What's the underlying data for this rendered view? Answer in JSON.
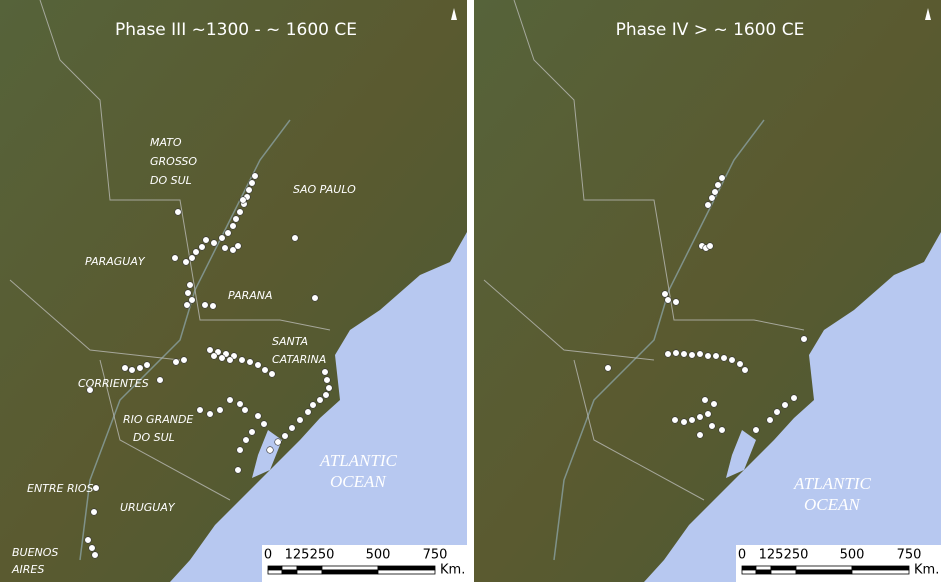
{
  "panels": [
    {
      "title": "Phase III ~1300 - ~ 1600 CE",
      "labels": [
        [
          "MATO",
          "GROSSO",
          "DO SUL"
        ],
        [
          "SAO PAULO"
        ],
        [
          "PARAGUAY"
        ],
        [
          "PARANA"
        ],
        [
          "SANTA",
          "CATARINA"
        ],
        [
          "CORRIENTES"
        ],
        [
          "RIO GRANDE",
          "DO SUL"
        ],
        [
          "ENTRE RIOS"
        ],
        [
          "URUGUAY"
        ],
        [
          "BUENOS",
          "AIRES"
        ]
      ],
      "ocean": [
        "ATLANTIC",
        "OCEAN"
      ],
      "scale": {
        "ticks": [
          "0",
          "125",
          "250",
          "500",
          "750"
        ],
        "unit": "Km."
      }
    },
    {
      "title": "Phase IV > ~ 1600 CE",
      "ocean": [
        "ATLANTIC",
        "OCEAN"
      ],
      "scale": {
        "ticks": [
          "0",
          "125",
          "250",
          "500",
          "750"
        ],
        "unit": "Km."
      }
    }
  ]
}
